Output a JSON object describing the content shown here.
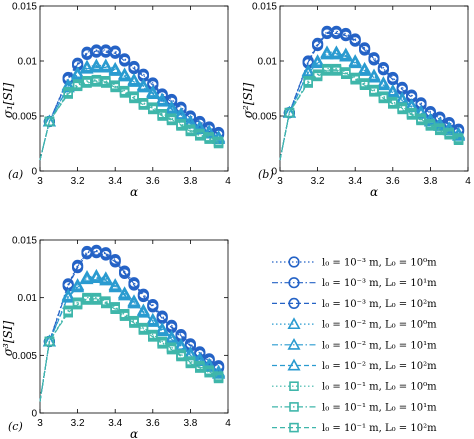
{
  "chart_data": [
    {
      "type": "line",
      "panel_label": "(a)",
      "xlabel": "α",
      "ylabel": "σ₁[SI]",
      "xlim": [
        3.0,
        4.0
      ],
      "ylim": [
        0.0,
        0.015
      ],
      "xticks": [
        "3",
        "3.2",
        "3.4",
        "3.6",
        "3.8",
        "4"
      ],
      "yticks": [
        "0",
        "0.005",
        "0.01",
        "0.015"
      ],
      "x": [
        3.0,
        3.05,
        3.15,
        3.2,
        3.25,
        3.3,
        3.35,
        3.4,
        3.45,
        3.5,
        3.55,
        3.6,
        3.65,
        3.7,
        3.75,
        3.8,
        3.85,
        3.9,
        3.95
      ],
      "series": [
        {
          "values": [
            0.001,
            0.0045,
            0.0085,
            0.0098,
            0.0108,
            0.011,
            0.011,
            0.0109,
            0.0102,
            0.0095,
            0.0088,
            0.008,
            0.007,
            0.0065,
            0.0058,
            0.005,
            0.0045,
            0.004,
            0.0035
          ]
        },
        {
          "values": [
            0.001,
            0.0045,
            0.0084,
            0.0097,
            0.0107,
            0.0109,
            0.0109,
            0.0108,
            0.0101,
            0.0094,
            0.0087,
            0.0079,
            0.0069,
            0.0064,
            0.0057,
            0.0049,
            0.0044,
            0.0039,
            0.0034
          ]
        },
        {
          "values": [
            0.001,
            0.0045,
            0.0083,
            0.0096,
            0.0106,
            0.0108,
            0.0108,
            0.0107,
            0.01,
            0.0093,
            0.0086,
            0.0078,
            0.0068,
            0.0063,
            0.0056,
            0.0048,
            0.0043,
            0.0038,
            0.0033
          ]
        },
        {
          "values": [
            0.001,
            0.0045,
            0.0078,
            0.0089,
            0.0095,
            0.0096,
            0.0096,
            0.0093,
            0.0088,
            0.0083,
            0.0078,
            0.0072,
            0.0065,
            0.0058,
            0.0052,
            0.0045,
            0.004,
            0.0036,
            0.0031
          ]
        },
        {
          "values": [
            0.001,
            0.0045,
            0.0077,
            0.0088,
            0.0094,
            0.0095,
            0.0095,
            0.0092,
            0.0087,
            0.0082,
            0.0077,
            0.0071,
            0.0064,
            0.0057,
            0.0051,
            0.0044,
            0.0039,
            0.0035,
            0.003
          ]
        },
        {
          "values": [
            0.001,
            0.0045,
            0.0076,
            0.0087,
            0.0093,
            0.0094,
            0.0094,
            0.0091,
            0.0086,
            0.0081,
            0.0076,
            0.007,
            0.0063,
            0.0056,
            0.005,
            0.0043,
            0.0038,
            0.0034,
            0.0029
          ]
        },
        {
          "values": [
            0.001,
            0.0045,
            0.0072,
            0.0079,
            0.0082,
            0.0083,
            0.0082,
            0.0078,
            0.0073,
            0.0068,
            0.0062,
            0.0058,
            0.0052,
            0.0048,
            0.0043,
            0.0038,
            0.0034,
            0.0031,
            0.0027
          ]
        },
        {
          "values": [
            0.001,
            0.0045,
            0.0071,
            0.0078,
            0.0081,
            0.0082,
            0.0081,
            0.0077,
            0.0072,
            0.0067,
            0.0061,
            0.0057,
            0.0051,
            0.0047,
            0.0042,
            0.0037,
            0.0033,
            0.003,
            0.0026
          ]
        },
        {
          "values": [
            0.001,
            0.0045,
            0.007,
            0.0077,
            0.008,
            0.0081,
            0.008,
            0.0076,
            0.0071,
            0.0066,
            0.006,
            0.0056,
            0.005,
            0.0046,
            0.0041,
            0.0036,
            0.0032,
            0.0029,
            0.0025
          ]
        }
      ]
    },
    {
      "type": "line",
      "panel_label": "(b)",
      "xlabel": "α",
      "ylabel": "σ²[SI]",
      "xlim": [
        3.0,
        4.0
      ],
      "ylim": [
        0.0,
        0.015
      ],
      "xticks": [
        "3",
        "3.2",
        "3.4",
        "3.6",
        "3.8",
        "4"
      ],
      "yticks": [
        "0",
        "0.005",
        "0.01",
        "0.015"
      ],
      "x": [
        3.0,
        3.05,
        3.15,
        3.2,
        3.25,
        3.3,
        3.35,
        3.4,
        3.45,
        3.5,
        3.55,
        3.6,
        3.65,
        3.7,
        3.75,
        3.8,
        3.85,
        3.9,
        3.95
      ],
      "series": [
        {
          "values": [
            0.001,
            0.0053,
            0.01,
            0.0116,
            0.0127,
            0.0127,
            0.0125,
            0.012,
            0.0112,
            0.0103,
            0.0094,
            0.0085,
            0.0076,
            0.0069,
            0.0062,
            0.0054,
            0.0049,
            0.0044,
            0.0038
          ]
        },
        {
          "values": [
            0.001,
            0.0053,
            0.0099,
            0.0115,
            0.0126,
            0.0126,
            0.0124,
            0.0119,
            0.0111,
            0.0102,
            0.0093,
            0.0084,
            0.0075,
            0.0068,
            0.0061,
            0.0053,
            0.0048,
            0.0043,
            0.0037
          ]
        },
        {
          "values": [
            0.001,
            0.0053,
            0.0098,
            0.0114,
            0.0125,
            0.0125,
            0.0123,
            0.0118,
            0.011,
            0.0101,
            0.0092,
            0.0083,
            0.0074,
            0.0067,
            0.006,
            0.0052,
            0.0047,
            0.0042,
            0.0036
          ]
        },
        {
          "values": [
            0.001,
            0.0053,
            0.0091,
            0.01,
            0.0108,
            0.0108,
            0.0106,
            0.01,
            0.0093,
            0.0087,
            0.008,
            0.0073,
            0.0066,
            0.006,
            0.0054,
            0.0047,
            0.0043,
            0.0039,
            0.0034
          ]
        },
        {
          "values": [
            0.001,
            0.0053,
            0.009,
            0.0099,
            0.0107,
            0.0107,
            0.0105,
            0.0099,
            0.0092,
            0.0086,
            0.0079,
            0.0072,
            0.0065,
            0.0059,
            0.0053,
            0.0046,
            0.0042,
            0.0038,
            0.0033
          ]
        },
        {
          "values": [
            0.001,
            0.0053,
            0.0089,
            0.0098,
            0.0106,
            0.0106,
            0.0104,
            0.0098,
            0.0091,
            0.0085,
            0.0078,
            0.0071,
            0.0064,
            0.0058,
            0.0052,
            0.0045,
            0.0041,
            0.0037,
            0.0032
          ]
        },
        {
          "values": [
            0.001,
            0.0053,
            0.0082,
            0.0088,
            0.0093,
            0.0093,
            0.009,
            0.0085,
            0.008,
            0.0074,
            0.0068,
            0.0063,
            0.0058,
            0.0053,
            0.0048,
            0.0043,
            0.0039,
            0.0035,
            0.003
          ]
        },
        {
          "values": [
            0.001,
            0.0053,
            0.0081,
            0.0087,
            0.0092,
            0.0092,
            0.0089,
            0.0084,
            0.0079,
            0.0073,
            0.0067,
            0.0062,
            0.0057,
            0.0052,
            0.0047,
            0.0042,
            0.0038,
            0.0034,
            0.0029
          ]
        },
        {
          "values": [
            0.001,
            0.0053,
            0.008,
            0.0086,
            0.0091,
            0.0091,
            0.0088,
            0.0083,
            0.0078,
            0.0072,
            0.0066,
            0.0061,
            0.0056,
            0.0051,
            0.0046,
            0.0041,
            0.0037,
            0.0033,
            0.0028
          ]
        }
      ]
    },
    {
      "type": "line",
      "panel_label": "(c)",
      "xlabel": "α",
      "ylabel": "σ³[SI]",
      "xlim": [
        3.0,
        4.0
      ],
      "ylim": [
        0.0,
        0.015
      ],
      "xticks": [
        "3",
        "3.2",
        "3.4",
        "3.6",
        "3.8",
        "4"
      ],
      "yticks": [
        "0",
        "0.005",
        "0.01",
        "0.015"
      ],
      "x": [
        3.0,
        3.05,
        3.15,
        3.2,
        3.25,
        3.3,
        3.35,
        3.4,
        3.45,
        3.5,
        3.55,
        3.6,
        3.65,
        3.7,
        3.75,
        3.8,
        3.85,
        3.9,
        3.95
      ],
      "series": [
        {
          "values": [
            0.001,
            0.0062,
            0.0112,
            0.0128,
            0.014,
            0.0141,
            0.0139,
            0.0133,
            0.0123,
            0.0113,
            0.0103,
            0.0094,
            0.0084,
            0.0076,
            0.0068,
            0.006,
            0.0053,
            0.0047,
            0.0041
          ]
        },
        {
          "values": [
            0.001,
            0.0062,
            0.0111,
            0.0127,
            0.0139,
            0.014,
            0.0138,
            0.0132,
            0.0122,
            0.0112,
            0.0102,
            0.0093,
            0.0083,
            0.0075,
            0.0067,
            0.0059,
            0.0052,
            0.0046,
            0.004
          ]
        },
        {
          "values": [
            0.001,
            0.0062,
            0.011,
            0.0126,
            0.0138,
            0.0139,
            0.0137,
            0.0131,
            0.0121,
            0.0111,
            0.0101,
            0.0092,
            0.0082,
            0.0074,
            0.0066,
            0.0058,
            0.0051,
            0.0045,
            0.0039
          ]
        },
        {
          "values": [
            0.001,
            0.0062,
            0.0102,
            0.0111,
            0.0118,
            0.0119,
            0.0117,
            0.0111,
            0.0104,
            0.0097,
            0.0089,
            0.0081,
            0.0073,
            0.0066,
            0.0059,
            0.0052,
            0.0047,
            0.0042,
            0.0036
          ]
        },
        {
          "values": [
            0.001,
            0.0062,
            0.0101,
            0.011,
            0.0117,
            0.0118,
            0.0116,
            0.011,
            0.0103,
            0.0096,
            0.0088,
            0.008,
            0.0072,
            0.0065,
            0.0058,
            0.0051,
            0.0046,
            0.0041,
            0.0035
          ]
        },
        {
          "values": [
            0.001,
            0.0062,
            0.01,
            0.0109,
            0.0116,
            0.0117,
            0.0115,
            0.0109,
            0.0102,
            0.0095,
            0.0087,
            0.0079,
            0.0071,
            0.0064,
            0.0057,
            0.005,
            0.0045,
            0.004,
            0.0034
          ]
        },
        {
          "values": [
            0.001,
            0.0062,
            0.0089,
            0.0096,
            0.01,
            0.01,
            0.0097,
            0.0092,
            0.0086,
            0.008,
            0.0074,
            0.0068,
            0.0062,
            0.0057,
            0.0051,
            0.0045,
            0.0041,
            0.0037,
            0.0032
          ]
        },
        {
          "values": [
            0.001,
            0.0062,
            0.0088,
            0.0095,
            0.0099,
            0.0099,
            0.0096,
            0.0091,
            0.0085,
            0.0079,
            0.0073,
            0.0067,
            0.0061,
            0.0056,
            0.005,
            0.0044,
            0.004,
            0.0036,
            0.0031
          ]
        },
        {
          "values": [
            0.001,
            0.0062,
            0.0087,
            0.0094,
            0.0098,
            0.0098,
            0.0095,
            0.009,
            0.0084,
            0.0078,
            0.0072,
            0.0066,
            0.006,
            0.0055,
            0.0049,
            0.0043,
            0.0039,
            0.0035,
            0.003
          ]
        }
      ]
    }
  ],
  "legend": {
    "entries": [
      {
        "label": "l₀ = 10⁻³ m, L₀ = 10⁰m",
        "color": "#2563c6",
        "marker": "circle",
        "dash": "dotted"
      },
      {
        "label": "l₀ = 10⁻³ m, L₀ = 10¹m",
        "color": "#2563c6",
        "marker": "circle",
        "dash": "dashdot"
      },
      {
        "label": "l₀ = 10⁻³ m, L₀ = 10²m",
        "color": "#2563c6",
        "marker": "circle",
        "dash": "dashed"
      },
      {
        "label": "l₀ = 10⁻² m, L₀ = 10⁰m",
        "color": "#2a9bd0",
        "marker": "triangle",
        "dash": "dotted"
      },
      {
        "label": "l₀ = 10⁻² m, L₀ = 10¹m",
        "color": "#2a9bd0",
        "marker": "triangle",
        "dash": "dashdot"
      },
      {
        "label": "l₀ = 10⁻² m, L₀ = 10²m",
        "color": "#2a9bd0",
        "marker": "triangle",
        "dash": "dashed"
      },
      {
        "label": "l₀ = 10⁻¹ m, L₀ = 10⁰m",
        "color": "#3fb6aa",
        "marker": "square",
        "dash": "dotted"
      },
      {
        "label": "l₀ = 10⁻¹ m, L₀ = 10¹m",
        "color": "#3fb6aa",
        "marker": "square",
        "dash": "dashdot"
      },
      {
        "label": "l₀ = 10⁻¹ m, L₀ = 10²m",
        "color": "#3fb6aa",
        "marker": "square",
        "dash": "dashed"
      }
    ]
  }
}
